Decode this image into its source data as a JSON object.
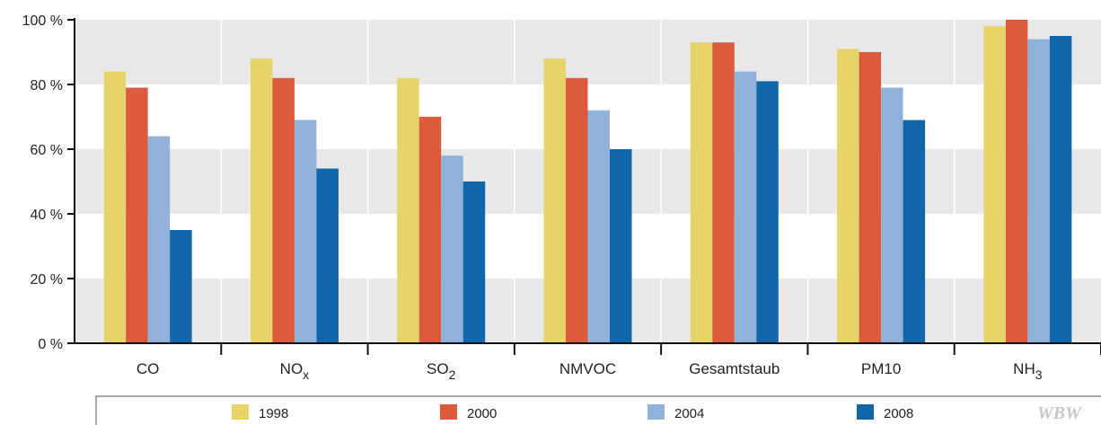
{
  "chart_data": {
    "type": "bar",
    "categories": [
      {
        "main": "CO",
        "sub": ""
      },
      {
        "main": "NO",
        "sub": "x"
      },
      {
        "main": "SO",
        "sub": "2"
      },
      {
        "main": "NMVOC",
        "sub": ""
      },
      {
        "main": "Gesamtstaub",
        "sub": ""
      },
      {
        "main": "PM10",
        "sub": ""
      },
      {
        "main": "NH",
        "sub": "3"
      }
    ],
    "series": [
      {
        "name": "1998",
        "color": "#e6d46a",
        "values": [
          84,
          88,
          82,
          88,
          93,
          91,
          98
        ]
      },
      {
        "name": "2000",
        "color": "#dc5b3c",
        "values": [
          79,
          82,
          70,
          82,
          93,
          90,
          100
        ]
      },
      {
        "name": "2004",
        "color": "#8fb1da",
        "values": [
          64,
          69,
          58,
          72,
          84,
          79,
          94
        ]
      },
      {
        "name": "2008",
        "color": "#1266aa",
        "values": [
          35,
          54,
          50,
          60,
          81,
          69,
          95
        ]
      }
    ],
    "ylim": [
      0,
      100
    ],
    "yticks": [
      0,
      20,
      40,
      60,
      80,
      100
    ],
    "ytick_labels": [
      "0 %",
      "20 %",
      "40 %",
      "60 %",
      "80 %",
      "100 %"
    ],
    "grid": "alternating horizontal bands",
    "band_colors": [
      "#e8e8e8",
      "#ffffff"
    ],
    "legend_position": "bottom",
    "title": "",
    "xlabel": "",
    "ylabel": ""
  },
  "watermark": "WBW"
}
